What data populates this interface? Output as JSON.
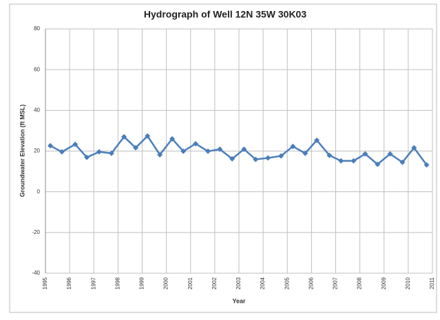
{
  "chart_data": {
    "type": "line",
    "title": "Hydrograph of Well 12N 35W 30K03",
    "x_label": "Year",
    "y_label": "Groundwater Elevation (ft MSL)",
    "x": [
      1995.2,
      1995.68,
      1996.23,
      1996.71,
      1997.22,
      1997.73,
      1998.25,
      1998.73,
      1999.22,
      1999.73,
      2000.24,
      2000.7,
      2001.21,
      2001.72,
      2002.21,
      2002.72,
      2003.21,
      2003.69,
      2004.2,
      2004.74,
      2005.23,
      2005.74,
      2006.22,
      2006.74,
      2007.22,
      2007.74,
      2008.22,
      2008.73,
      2009.25,
      2009.76,
      2010.24,
      2010.76
    ],
    "series": [
      {
        "name": "Groundwater Elevation",
        "color": "#4a7ebb",
        "values": [
          22.6,
          19.6,
          23.3,
          16.9,
          19.6,
          18.9,
          27.0,
          21.6,
          27.4,
          18.2,
          26.0,
          19.9,
          23.6,
          19.9,
          20.9,
          16.2,
          20.9,
          15.9,
          16.6,
          17.6,
          22.3,
          18.9,
          25.3,
          17.9,
          15.2,
          15.2,
          18.6,
          13.5,
          18.6,
          14.5,
          21.6,
          13.2
        ]
      }
    ],
    "xlim": [
      1995,
      2011
    ],
    "xticks": [
      1995,
      1996,
      1997,
      1998,
      1999,
      2000,
      2001,
      2002,
      2003,
      2004,
      2005,
      2006,
      2007,
      2008,
      2009,
      2010,
      2011
    ],
    "ylim": [
      -40,
      80
    ],
    "yticks": [
      -40,
      -20,
      0,
      20,
      40,
      60,
      80
    ],
    "grid": true
  }
}
